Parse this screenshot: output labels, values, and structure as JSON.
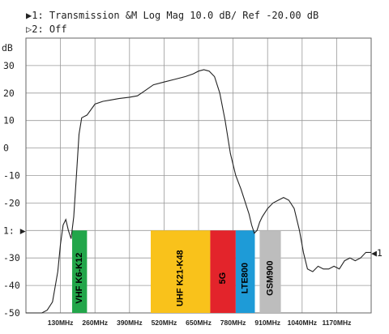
{
  "header": {
    "trace1": "▶1: Transmission  &M Log Mag  10.0 dB/ Ref -20.00 dB",
    "trace2": "▷2: Off"
  },
  "chart_data": {
    "type": "line",
    "ylabel": "dB",
    "ylim": [
      -60,
      40
    ],
    "xlim": [
      0,
      1300
    ],
    "y_ticks": [
      "30",
      "20",
      "10",
      "0",
      "-10",
      "-20",
      "1: ▶",
      "-30",
      "-40",
      "-50"
    ],
    "x_ticks": [
      "130MHz",
      "260MHz",
      "390MHz",
      "520MHz",
      "650MHz",
      "780MHz",
      "910MHz",
      "1040MHz",
      "1170MHz"
    ],
    "grid": true,
    "marker_right": "◀1",
    "series": [
      {
        "x": [
          0,
          40,
          60,
          80,
          100,
          120,
          130,
          140,
          150,
          160,
          170,
          180,
          190,
          200,
          210,
          230,
          260,
          290,
          320,
          350,
          390,
          420,
          450,
          480,
          520,
          560,
          600,
          630,
          650,
          670,
          690,
          710,
          730,
          750,
          770,
          790,
          810,
          820,
          830,
          840,
          850,
          860,
          870,
          880,
          890,
          910,
          930,
          950,
          970,
          990,
          1010,
          1030,
          1045,
          1060,
          1080,
          1100,
          1120,
          1140,
          1160,
          1180,
          1200,
          1220,
          1240,
          1260,
          1280,
          1300
        ],
        "y": [
          -60,
          -60,
          -60,
          -59,
          -56,
          -45,
          -35,
          -28,
          -26,
          -30,
          -33,
          -25,
          -10,
          5,
          11,
          12,
          16,
          17,
          17.5,
          18,
          18.5,
          19,
          21,
          23,
          24,
          25,
          26,
          27,
          28,
          28.5,
          28,
          26,
          20,
          10,
          -2,
          -10,
          -15,
          -18,
          -21,
          -24,
          -28,
          -31,
          -30,
          -27,
          -25,
          -22,
          -20,
          -19,
          -18,
          -19,
          -22,
          -30,
          -38,
          -44,
          -45,
          -43,
          -44,
          -44,
          -43,
          -44,
          -41,
          -40,
          -41,
          -40,
          -38,
          -38
        ]
      }
    ],
    "bands": [
      {
        "label": "VHF K6-K12",
        "x_start": 174,
        "x_end": 230,
        "y_top": -30,
        "color": "#22a64a",
        "text_color": "#000000"
      },
      {
        "label": "UHF K21-K48",
        "x_start": 470,
        "x_end": 694,
        "y_top": -30,
        "color": "#f9c21b",
        "text_color": "#000000"
      },
      {
        "label": "5G",
        "x_start": 694,
        "x_end": 790,
        "y_top": -30,
        "color": "#e3242b",
        "text_color": "#000000"
      },
      {
        "label": "LTE800",
        "x_start": 790,
        "x_end": 862,
        "y_top": -30,
        "color": "#1e9bd7",
        "text_color": "#000000"
      },
      {
        "label": "GSM900",
        "x_start": 880,
        "x_end": 960,
        "y_top": -30,
        "color": "#bdbdbd",
        "text_color": "#000000"
      }
    ]
  }
}
